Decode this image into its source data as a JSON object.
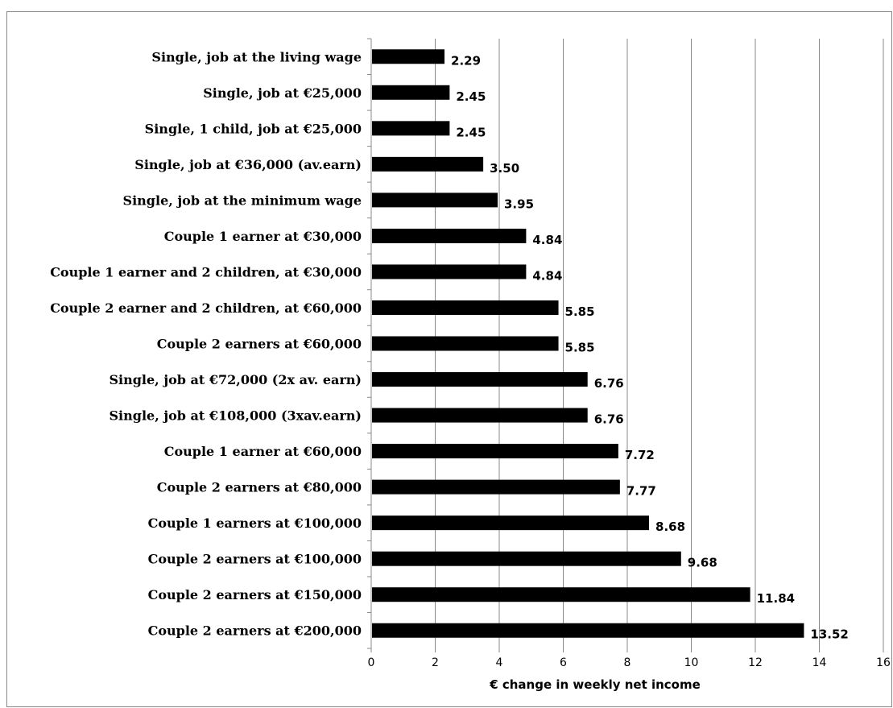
{
  "chart_data": {
    "type": "bar",
    "orientation": "horizontal",
    "title": "",
    "xlabel": "€ change in weekly net income",
    "ylabel": "",
    "xlim": [
      0,
      16
    ],
    "x_ticks": [
      0,
      2,
      4,
      6,
      8,
      10,
      12,
      14,
      16
    ],
    "grid": true,
    "legend": "none",
    "bar_color": "#000000",
    "categories": [
      "Single, job at the living wage",
      "Single, job at €25,000",
      "Single, 1 child, job at €25,000",
      "Single, job at €36,000 (av.earn)",
      "Single, job at the minimum wage",
      "Couple 1 earner at €30,000",
      "Couple 1 earner and 2 children, at €30,000",
      "Couple 2 earner and 2 children, at €60,000",
      "Couple 2 earners at €60,000",
      "Single, job at €72,000 (2x av. earn)",
      "Single, job at €108,000 (3xav.earn)",
      "Couple 1 earner at €60,000",
      "Couple 2 earners at €80,000",
      "Couple 1 earners at €100,000",
      "Couple 2 earners at €100,000",
      "Couple 2 earners at €150,000",
      "Couple 2 earners at €200,000"
    ],
    "values": [
      2.29,
      2.45,
      2.45,
      3.5,
      3.95,
      4.84,
      4.84,
      5.85,
      5.85,
      6.76,
      6.76,
      7.72,
      7.77,
      8.68,
      9.68,
      11.84,
      13.52
    ],
    "data_labels": [
      "2.29",
      "2.45",
      "2.45",
      "3.50",
      "3.95",
      "4.84",
      "4.84",
      "5.85",
      "5.85",
      "6.76",
      "6.76",
      "7.72",
      "7.77",
      "8.68",
      "9.68",
      "11.84",
      "13.52"
    ]
  }
}
